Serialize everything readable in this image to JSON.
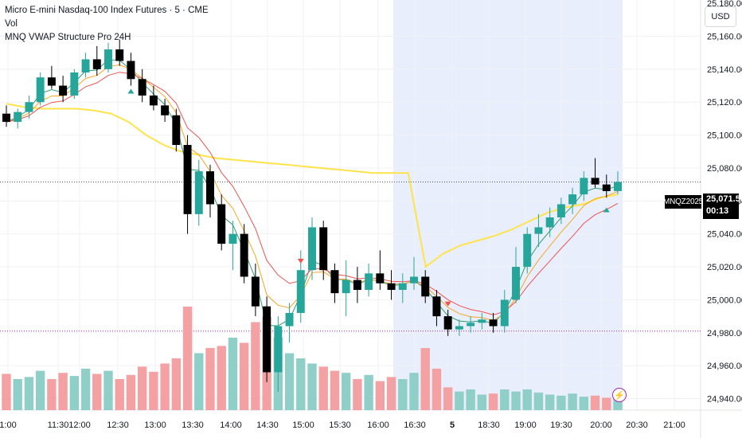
{
  "header": {
    "title": "Micro E-mini Nasdaq-100 Index Futures · 5 · CME",
    "vol_label": "Vol",
    "indicator_label": "MNQ VWAP Structure Pro 24H"
  },
  "currency_button": "USD",
  "price_tag": {
    "symbol": "MNQZ2025",
    "price": "25,071.50",
    "countdown": "00:13"
  },
  "icons": {
    "alert": "lightning-icon"
  },
  "colors": {
    "up": "#26a69a",
    "down": "#000000",
    "vwap": "#ffe34a",
    "ema_fast": "#2e9e6e",
    "ema_mid": "#f5a623",
    "ema_slow": "#ef5350",
    "vol_up": "#8fcfc8",
    "vol_down": "#f3a1a3",
    "session_shade": "#e8eefc",
    "buy_marker": "#26a69a",
    "sell_marker": "#ef5350"
  },
  "chart_data": {
    "type": "candlestick",
    "symbol": "MNQZ2025",
    "timeframe": "5",
    "x_ticks": [
      "1:00",
      "11:30",
      "12:00",
      "12:30",
      "13:00",
      "13:30",
      "14:00",
      "14:30",
      "15:00",
      "15:30",
      "16:00",
      "16:30",
      "5",
      "18:30",
      "19:00",
      "19:30",
      "20:00",
      "20:30",
      "21:00"
    ],
    "y_ticks": [
      "25,160.00",
      "25,140.00",
      "25,120.00",
      "25,100.00",
      "25,080.00",
      "25,060.00",
      "25,040.00",
      "25,020.00",
      "25,000.00",
      "24,980.00",
      "24,960.00",
      "24,940.00"
    ],
    "partial_top_tick": "25,180.00",
    "y_range": [
      24933,
      25182
    ],
    "last_price": 25071.5,
    "dotted_level": 24981,
    "vwap_line": [
      25119,
      25117,
      25116,
      25116,
      25116,
      25115,
      25113,
      25108,
      25100,
      25094,
      25090,
      25088,
      25086,
      25085,
      25084,
      25083,
      25082,
      25081,
      25080,
      25079,
      25078,
      25077,
      25077,
      25077,
      25020,
      25028,
      25033,
      25036,
      25039,
      25043,
      25048,
      25053,
      25056,
      25058,
      25062,
      25064
    ],
    "candles_ohlc": [
      [
        25113,
        25118,
        25105,
        25108
      ],
      [
        25108,
        25116,
        25104,
        25114
      ],
      [
        25114,
        25124,
        25110,
        25120
      ],
      [
        25120,
        25138,
        25118,
        25135
      ],
      [
        25135,
        25142,
        25128,
        25130
      ],
      [
        25130,
        25136,
        25120,
        25124
      ],
      [
        25124,
        25140,
        25122,
        25138
      ],
      [
        25138,
        25150,
        25135,
        25146
      ],
      [
        25146,
        25154,
        25136,
        25140
      ],
      [
        25140,
        25156,
        25138,
        25152
      ],
      [
        25152,
        25158,
        25142,
        25145
      ],
      [
        25145,
        25150,
        25130,
        25134
      ],
      [
        25134,
        25140,
        25120,
        25124
      ],
      [
        25124,
        25130,
        25115,
        25118
      ],
      [
        25118,
        25122,
        25108,
        25112
      ],
      [
        25112,
        25116,
        25090,
        25094
      ],
      [
        25094,
        25100,
        25040,
        25052
      ],
      [
        25052,
        25085,
        25045,
        25078
      ],
      [
        25078,
        25082,
        25050,
        25058
      ],
      [
        25058,
        25064,
        25030,
        25034
      ],
      [
        25034,
        25048,
        25018,
        25040
      ],
      [
        25040,
        25046,
        25010,
        25014
      ],
      [
        25014,
        25022,
        24990,
        24996
      ],
      [
        24996,
        25002,
        24950,
        24956
      ],
      [
        24956,
        24990,
        24944,
        24984
      ],
      [
        24984,
        24998,
        24974,
        24992
      ],
      [
        24992,
        25030,
        24986,
        25018
      ],
      [
        25018,
        25050,
        25012,
        25044
      ],
      [
        25044,
        25048,
        25012,
        25018
      ],
      [
        25018,
        25022,
        24998,
        25004
      ],
      [
        25004,
        25024,
        24990,
        25012
      ],
      [
        25012,
        25020,
        24998,
        25006
      ],
      [
        25006,
        25022,
        25002,
        25016
      ],
      [
        25016,
        25030,
        25006,
        25010
      ],
      [
        25010,
        25018,
        25000,
        25006
      ],
      [
        25006,
        25016,
        24998,
        25010
      ],
      [
        25010,
        25026,
        25006,
        25014
      ],
      [
        25014,
        25018,
        24998,
        25002
      ],
      [
        25002,
        25006,
        24984,
        24990
      ],
      [
        24990,
        24994,
        24978,
        24982
      ],
      [
        24982,
        24988,
        24978,
        24984
      ],
      [
        24984,
        24990,
        24980,
        24986
      ],
      [
        24986,
        24992,
        24982,
        24988
      ],
      [
        24988,
        24992,
        24980,
        24984
      ],
      [
        24984,
        25006,
        24980,
        25000
      ],
      [
        25000,
        25032,
        24998,
        25020
      ],
      [
        25020,
        25044,
        25016,
        25040
      ],
      [
        25040,
        25052,
        25032,
        25044
      ],
      [
        25044,
        25056,
        25038,
        25050
      ],
      [
        25050,
        25062,
        25046,
        25058
      ],
      [
        25058,
        25068,
        25052,
        25064
      ],
      [
        25064,
        25078,
        25060,
        25074
      ],
      [
        25074,
        25086,
        25068,
        25070
      ],
      [
        25070,
        25076,
        25062,
        25066
      ],
      [
        25066,
        25078,
        25064,
        25071.5
      ]
    ],
    "candle_x_labels_note": "",
    "volume_relative": [
      0.35,
      0.3,
      0.32,
      0.38,
      0.3,
      0.36,
      0.33,
      0.4,
      0.35,
      0.38,
      0.3,
      0.34,
      0.42,
      0.37,
      0.45,
      0.5,
      1.0,
      0.55,
      0.6,
      0.62,
      0.7,
      0.65,
      0.85,
      0.9,
      0.7,
      0.55,
      0.5,
      0.45,
      0.42,
      0.38,
      0.36,
      0.3,
      0.34,
      0.28,
      0.32,
      0.3,
      0.36,
      0.6,
      0.4,
      0.22,
      0.18,
      0.2,
      0.15,
      0.16,
      0.2,
      0.18,
      0.2,
      0.17,
      0.15,
      0.14,
      0.16,
      0.13,
      0.14,
      0.12,
      0.13
    ],
    "buy_signals_y": [
      25130,
      25130,
      25058
    ],
    "sell_signals_y": [
      25022,
      24996
    ]
  }
}
